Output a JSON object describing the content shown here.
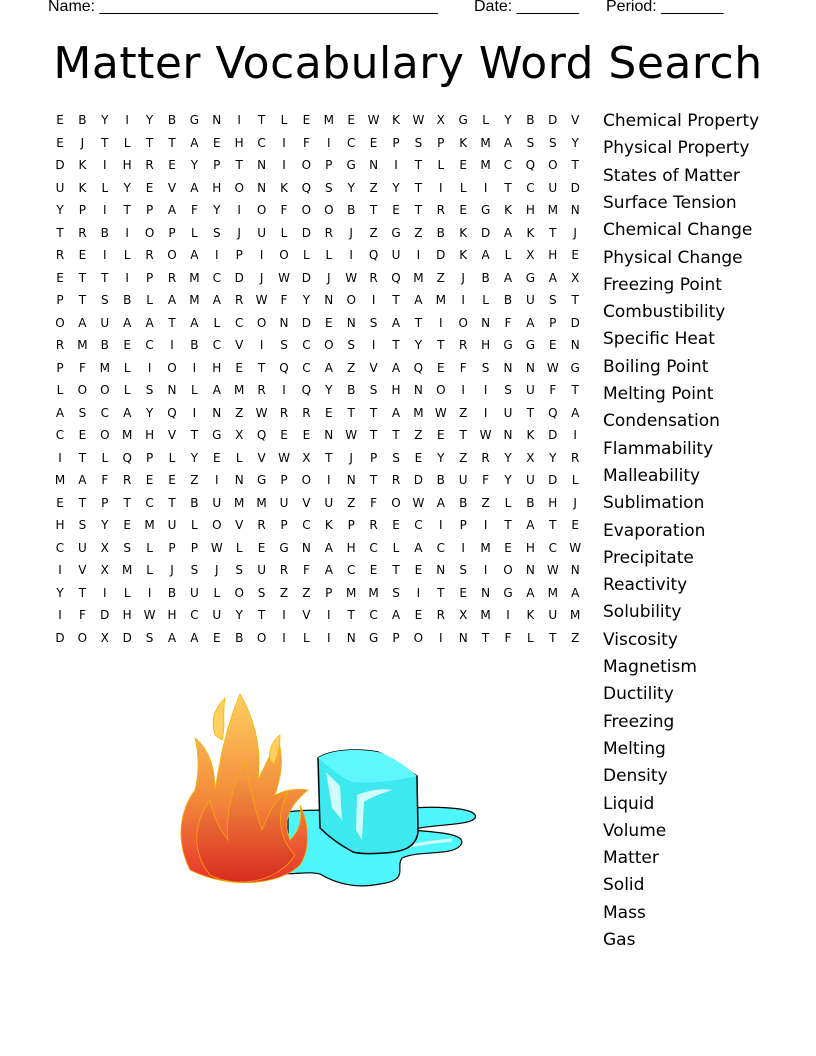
{
  "header": {
    "name_label": "Name: ______________________________________",
    "date_label": "Date: _______",
    "period_label": "Period: _______"
  },
  "title": "Matter Vocabulary Word Search",
  "grid": [
    "EBYIYBGNITLEMEWKWXGLYBDV",
    "EJTLTTAEHCIFICEPSPKMASSY",
    "DKIHREYPTNIOPGNITLEMCQOT",
    "UKLYEVAHONKQSYZYTILITCUD",
    "YPITPAFYIOFOOBTETREGKHMN",
    "TRBIOPLSJULDRJZGZBKDAKTJ",
    "REILROAIPIOLLIQUIDKALXHE",
    "ETTIPRMCDJWDJWRQMZJBAGAX",
    "PTSBLAMARWFYNOITAMILBUST",
    "OAUAATALCONDENSATIONFAPD",
    "RMBECIBCVISCOSITYTRHGGEN",
    "PFMLIOIHETQCAZVAQEFSNNWG",
    "LOOLSNLAMRIQYBSHNOIISUFT",
    "ASCAYQINZWRRETTAMWZIUTQA",
    "CEOMHVTGXQEENWTTZETWNKDI",
    "ITLQPLYELVWXTJPSEYZRYXYR",
    "MAFREEZINGPOINTRDBUFYUDL",
    "ETPTCTBUMMUVUZFOWABZLBHJ",
    "HSYEMULOVRPCKPRECIPITATE",
    "CUXSLPPWLEGNAHCLACIMEHCW",
    "IVXMLJSJSURFACETENSIONWN",
    "YTILIBULOSZZPMMSITENGAMA",
    "IFDHWHCUYTIVITCAERXMIKUM",
    "DOXDSAAEBOILINGPOINTFLTZ"
  ],
  "words": [
    "Chemical Property",
    "Physical Property",
    "States of Matter",
    "Surface Tension",
    "Chemical Change",
    "Physical Change",
    "Freezing Point",
    "Combustibility",
    "Specific Heat",
    "Boiling Point",
    "Melting Point",
    "Condensation",
    "Flammability",
    "Malleability",
    "Sublimation",
    "Evaporation",
    "Precipitate",
    "Reactivity",
    "Solubility",
    "Viscosity",
    "Magnetism",
    "Ductility",
    "Freezing",
    "Melting",
    "Density",
    "Liquid",
    "Volume",
    "Matter",
    "Solid",
    "Mass",
    "Gas"
  ],
  "illustration": {
    "items": [
      "fire-icon",
      "ice-cube-icon",
      "water-puddle-icon"
    ],
    "colors": {
      "flame_outer": "#e8322a",
      "flame_mid": "#f7a030",
      "flame_inner": "#ffd060",
      "ice": "#4ff6fb",
      "ice_dark": "#38e4ea"
    }
  }
}
